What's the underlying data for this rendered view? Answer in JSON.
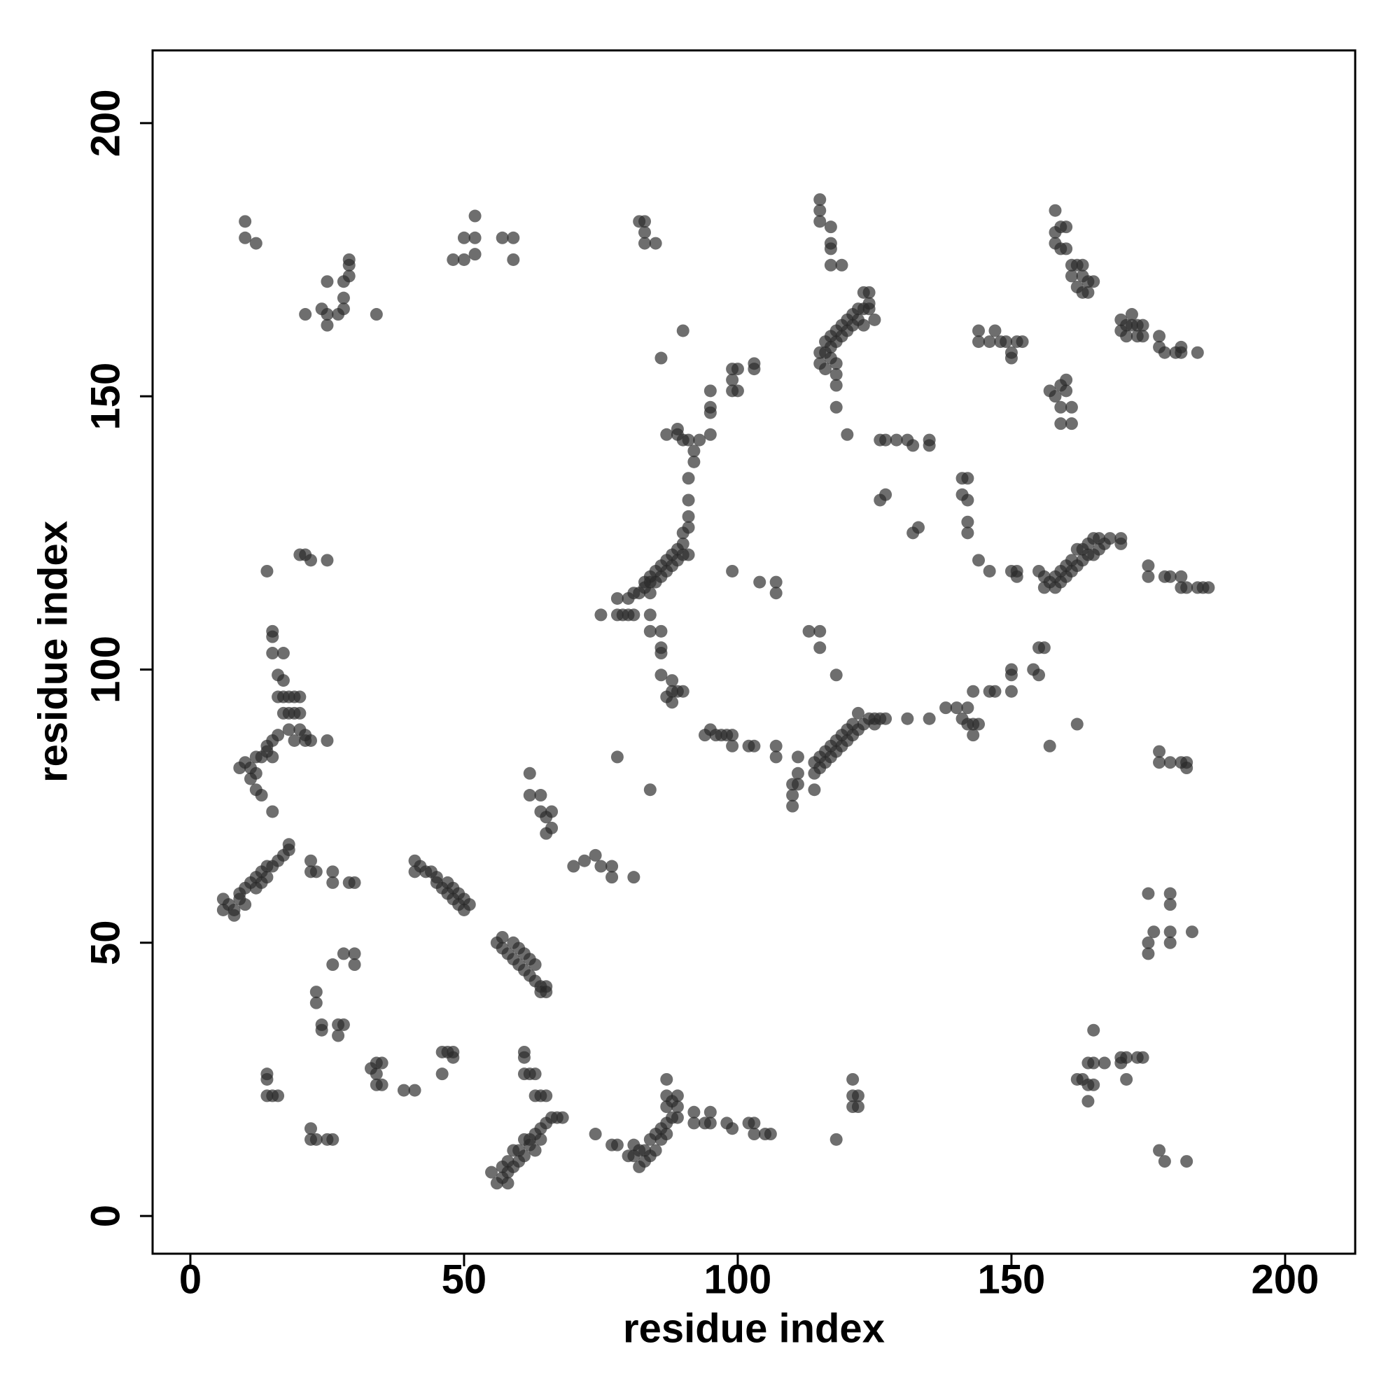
{
  "chart_data": {
    "type": "scatter",
    "x_label": "residue index",
    "y_label": "residue index",
    "xlim": [
      -6.9,
      212.8
    ],
    "ylim": [
      -6.9,
      213.3
    ],
    "xticks": [
      0,
      50,
      100,
      150,
      200
    ],
    "yticks": [
      0,
      50,
      100,
      150,
      200
    ],
    "grid": false,
    "color": "#2a2a2a",
    "opacity": 0.68,
    "x": [
      6,
      6,
      7,
      8,
      8,
      9,
      9,
      10,
      10,
      11,
      12,
      12,
      13,
      13,
      14,
      14,
      15,
      16,
      17,
      18,
      18,
      22,
      22,
      23,
      26,
      26,
      29,
      30,
      41,
      42,
      41,
      43,
      44,
      45,
      45,
      46,
      47,
      47,
      48,
      48,
      49,
      49,
      50,
      50,
      51,
      56,
      57,
      57,
      58,
      59,
      59,
      60,
      60,
      61,
      61,
      62,
      62,
      63,
      63,
      64,
      64,
      65,
      65,
      62,
      62,
      64,
      64,
      65,
      65,
      66,
      66,
      70,
      72,
      74,
      75,
      77,
      77,
      81,
      78,
      84,
      30,
      28,
      30,
      26,
      23,
      23,
      24,
      24,
      27,
      28,
      27,
      33,
      34,
      34,
      35,
      35,
      34,
      39,
      41,
      46,
      47,
      48,
      48,
      46,
      14,
      14,
      14,
      15,
      16,
      22,
      22,
      23,
      25,
      26,
      61,
      61,
      61,
      62,
      63,
      63,
      64,
      65,
      55,
      56,
      57,
      57,
      58,
      58,
      58,
      59,
      59,
      60,
      60,
      61,
      61,
      62,
      62,
      63,
      63,
      64,
      64,
      65,
      66,
      67,
      68,
      74,
      77,
      78,
      80,
      81,
      81,
      82,
      82,
      83,
      83,
      84,
      84,
      85,
      85,
      86,
      86,
      87,
      87,
      87,
      87,
      88,
      88,
      87,
      89,
      89,
      89,
      92,
      92,
      94,
      95,
      95,
      98,
      99,
      102,
      103,
      103,
      105,
      106,
      118,
      121,
      121,
      121,
      122,
      122,
      162,
      163,
      164,
      164,
      164,
      165,
      165,
      165,
      167,
      170,
      170,
      171,
      171,
      173,
      174,
      177,
      178,
      182,
      175,
      175,
      175,
      176,
      179,
      179,
      179,
      179,
      183,
      9,
      10,
      11,
      11,
      12,
      12,
      12,
      13,
      13,
      14,
      14,
      15,
      15,
      15,
      16,
      16,
      16,
      17,
      17,
      17,
      18,
      18,
      18,
      19,
      19,
      19,
      20,
      20,
      20,
      21,
      21,
      22,
      25,
      15,
      15,
      15,
      17,
      14,
      20,
      21,
      22,
      25,
      10,
      10,
      12,
      21,
      24,
      25,
      25,
      25,
      27,
      28,
      28,
      28,
      29,
      29,
      29,
      34,
      48,
      50,
      50,
      52,
      52,
      52,
      57,
      59,
      59,
      82,
      83,
      83,
      83,
      85,
      115,
      115,
      115,
      117,
      117,
      117,
      117,
      119,
      75,
      78,
      78,
      79,
      80,
      80,
      81,
      82,
      83,
      83,
      84,
      84,
      84,
      85,
      85,
      86,
      86,
      87,
      87,
      88,
      88,
      89,
      89,
      90,
      90,
      91,
      90,
      91,
      91,
      91,
      91,
      87,
      89,
      89,
      90,
      91,
      92,
      92,
      93,
      95,
      95,
      95,
      95,
      99,
      99,
      99,
      100,
      100,
      103,
      103,
      90,
      86,
      81,
      84,
      84,
      86,
      86,
      86,
      86,
      88,
      88,
      87,
      88,
      89,
      90,
      94,
      95,
      96,
      97,
      98,
      99,
      99,
      102,
      103,
      107,
      107,
      110,
      110,
      110,
      111,
      111,
      111,
      114,
      114,
      114,
      115,
      115,
      116,
      116,
      117,
      117,
      118,
      118,
      119,
      119,
      120,
      120,
      121,
      121,
      122,
      122,
      123,
      124,
      125,
      125,
      126,
      127,
      131,
      135,
      138,
      140,
      141,
      142,
      142,
      143,
      143,
      143,
      144,
      146,
      147,
      150,
      150,
      150,
      154,
      155,
      155,
      156,
      113,
      115,
      115,
      118,
      157,
      162,
      115,
      115,
      116,
      116,
      116,
      117,
      117,
      117,
      118,
      118,
      118,
      118,
      118,
      119,
      119,
      120,
      120,
      121,
      121,
      122,
      122,
      123,
      123,
      123,
      124,
      124,
      124,
      125,
      118,
      120,
      126,
      127,
      129,
      126,
      127,
      132,
      133,
      131,
      132,
      135,
      135,
      141,
      142,
      141,
      142,
      142,
      142,
      144,
      144,
      144,
      146,
      147,
      148,
      149,
      150,
      150,
      151,
      152,
      157,
      158,
      159,
      159,
      159,
      160,
      160,
      161,
      161,
      158,
      158,
      158,
      159,
      159,
      160,
      160,
      161,
      161,
      162,
      162,
      163,
      163,
      163,
      164,
      164,
      165,
      170,
      170,
      171,
      171,
      172,
      172,
      173,
      173,
      174,
      174,
      177,
      177,
      178,
      180,
      181,
      181,
      184,
      146,
      150,
      151,
      151,
      155,
      156,
      156,
      157,
      158,
      158,
      159,
      159,
      160,
      160,
      161,
      161,
      162,
      162,
      163,
      163,
      164,
      164,
      165,
      165,
      166,
      166,
      167,
      168,
      170,
      170,
      175,
      175,
      178,
      179,
      181,
      181,
      182,
      184,
      185,
      186,
      177,
      177,
      179,
      181,
      182,
      182,
      99,
      104,
      107,
      107
    ],
    "values": [
      56,
      58,
      57,
      56,
      55,
      58,
      59,
      60,
      57,
      61,
      60,
      62,
      63,
      61,
      64,
      62,
      64,
      65,
      66,
      67,
      68,
      65,
      63,
      63,
      63,
      61,
      61,
      61,
      65,
      64,
      63,
      63,
      63,
      62,
      61,
      60,
      61,
      59,
      60,
      58,
      59,
      57,
      58,
      56,
      57,
      50,
      49,
      51,
      48,
      50,
      47,
      49,
      46,
      48,
      45,
      47,
      44,
      46,
      43,
      42,
      41,
      42,
      41,
      81,
      77,
      77,
      74,
      73,
      70,
      71,
      74,
      64,
      65,
      66,
      64,
      64,
      62,
      62,
      84,
      78,
      48,
      48,
      46,
      46,
      41,
      39,
      35,
      34,
      35,
      35,
      33,
      27,
      28,
      26,
      28,
      24,
      24,
      23,
      23,
      30,
      30,
      30,
      29,
      26,
      26,
      25,
      22,
      22,
      22,
      16,
      14,
      14,
      14,
      14,
      30,
      29,
      26,
      26,
      26,
      22,
      22,
      22,
      8,
      6,
      7,
      9,
      6,
      8,
      10,
      9,
      12,
      10,
      12,
      11,
      14,
      13,
      14,
      12,
      15,
      16,
      14,
      17,
      18,
      18,
      18,
      15,
      13,
      13,
      11,
      11,
      13,
      12,
      9,
      10,
      12,
      11,
      14,
      12,
      15,
      14,
      16,
      15,
      17,
      20,
      22,
      18,
      21,
      25,
      20,
      22,
      18,
      19,
      17,
      17,
      17,
      19,
      17,
      16,
      17,
      15,
      17,
      15,
      15,
      14,
      20,
      22,
      25,
      22,
      20,
      25,
      25,
      28,
      24,
      21,
      28,
      24,
      34,
      28,
      28,
      29,
      25,
      29,
      29,
      29,
      12,
      10,
      10,
      59,
      50,
      48,
      52,
      59,
      57,
      52,
      50,
      52,
      82,
      83,
      80,
      82,
      81,
      84,
      78,
      77,
      84,
      85,
      86,
      84,
      87,
      74,
      88,
      95,
      99,
      92,
      95,
      98,
      95,
      89,
      92,
      92,
      95,
      87,
      89,
      92,
      95,
      88,
      87,
      87,
      87,
      103,
      106,
      107,
      103,
      118,
      121,
      121,
      120,
      120,
      182,
      179,
      178,
      165,
      166,
      165,
      163,
      171,
      165,
      168,
      171,
      166,
      172,
      174,
      175,
      165,
      175,
      175,
      179,
      179,
      176,
      183,
      179,
      179,
      175,
      182,
      182,
      180,
      178,
      178,
      186,
      184,
      182,
      181,
      178,
      177,
      174,
      174,
      110,
      110,
      113,
      110,
      110,
      113,
      114,
      114,
      115,
      116,
      114,
      116,
      117,
      116,
      118,
      117,
      119,
      118,
      120,
      119,
      121,
      120,
      122,
      121,
      123,
      121,
      125,
      126,
      128,
      131,
      135,
      143,
      143,
      144,
      142,
      142,
      138,
      140,
      142,
      143,
      147,
      148,
      151,
      151,
      153,
      155,
      155,
      151,
      155,
      156,
      162,
      157,
      110,
      110,
      107,
      107,
      103,
      104,
      99,
      98,
      96,
      95,
      94,
      96,
      96,
      88,
      89,
      88,
      88,
      88,
      86,
      88,
      86,
      86,
      86,
      84,
      79,
      77,
      75,
      79,
      81,
      84,
      78,
      81,
      83,
      82,
      84,
      83,
      85,
      84,
      86,
      87,
      85,
      88,
      86,
      89,
      87,
      90,
      88,
      92,
      89,
      90,
      91,
      90,
      91,
      91,
      91,
      91,
      91,
      93,
      93,
      91,
      93,
      90,
      96,
      88,
      90,
      90,
      96,
      96,
      96,
      100,
      99,
      100,
      99,
      104,
      104,
      107,
      107,
      104,
      99,
      86,
      90,
      156,
      158,
      155,
      158,
      160,
      157,
      159,
      161,
      152,
      154,
      156,
      160,
      162,
      161,
      163,
      162,
      164,
      163,
      165,
      164,
      166,
      163,
      166,
      169,
      167,
      169,
      166,
      164,
      148,
      143,
      142,
      142,
      142,
      131,
      132,
      125,
      126,
      142,
      141,
      142,
      141,
      135,
      135,
      132,
      131,
      127,
      125,
      120,
      162,
      160,
      160,
      162,
      160,
      160,
      157,
      158,
      160,
      160,
      151,
      150,
      152,
      148,
      145,
      153,
      151,
      148,
      145,
      184,
      180,
      178,
      181,
      177,
      181,
      177,
      174,
      172,
      170,
      174,
      169,
      172,
      174,
      171,
      169,
      171,
      164,
      162,
      163,
      161,
      165,
      163,
      163,
      161,
      163,
      161,
      161,
      159,
      158,
      158,
      159,
      158,
      158,
      118,
      118,
      118,
      117,
      118,
      117,
      115,
      116,
      115,
      117,
      116,
      118,
      117,
      119,
      118,
      120,
      119,
      122,
      120,
      122,
      121,
      123,
      121,
      124,
      122,
      124,
      123,
      124,
      124,
      123,
      119,
      117,
      117,
      117,
      117,
      115,
      115,
      115,
      115,
      115,
      85,
      83,
      83,
      83,
      82,
      83,
      118,
      116,
      116,
      114
    ]
  }
}
